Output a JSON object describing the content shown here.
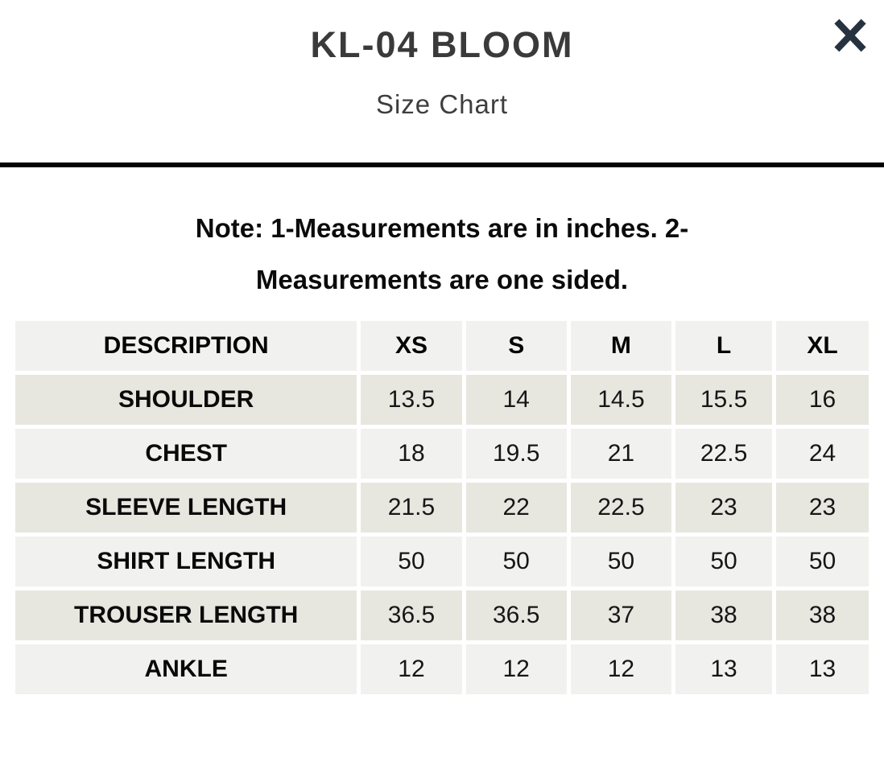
{
  "header": {
    "title": "KL-04 BLOOM",
    "subtitle": "Size Chart",
    "close_icon": "close-x"
  },
  "note": "Note: 1-Measurements are in inches. 2-Measurements are one sided.",
  "table": {
    "columns": [
      "DESCRIPTION",
      "XS",
      "S",
      "M",
      "L",
      "XL"
    ],
    "rows": [
      {
        "label": "SHOULDER",
        "values": [
          "13.5",
          "14",
          "14.5",
          "15.5",
          "16"
        ]
      },
      {
        "label": "CHEST",
        "values": [
          "18",
          "19.5",
          "21",
          "22.5",
          "24"
        ]
      },
      {
        "label": "SLEEVE LENGTH",
        "values": [
          "21.5",
          "22",
          "22.5",
          "23",
          "23"
        ]
      },
      {
        "label": "SHIRT LENGTH",
        "values": [
          "50",
          "50",
          "50",
          "50",
          "50"
        ]
      },
      {
        "label": "TROUSER LENGTH",
        "values": [
          "36.5",
          "36.5",
          "37",
          "38",
          "38"
        ]
      },
      {
        "label": "ANKLE",
        "values": [
          "12",
          "12",
          "12",
          "13",
          "13"
        ]
      }
    ]
  },
  "colors": {
    "close_icon": "#273240",
    "divider": "#030303",
    "title_text": "#3a3a3a",
    "row_dark": "#e7e7e0",
    "row_light": "#f1f1f0"
  }
}
